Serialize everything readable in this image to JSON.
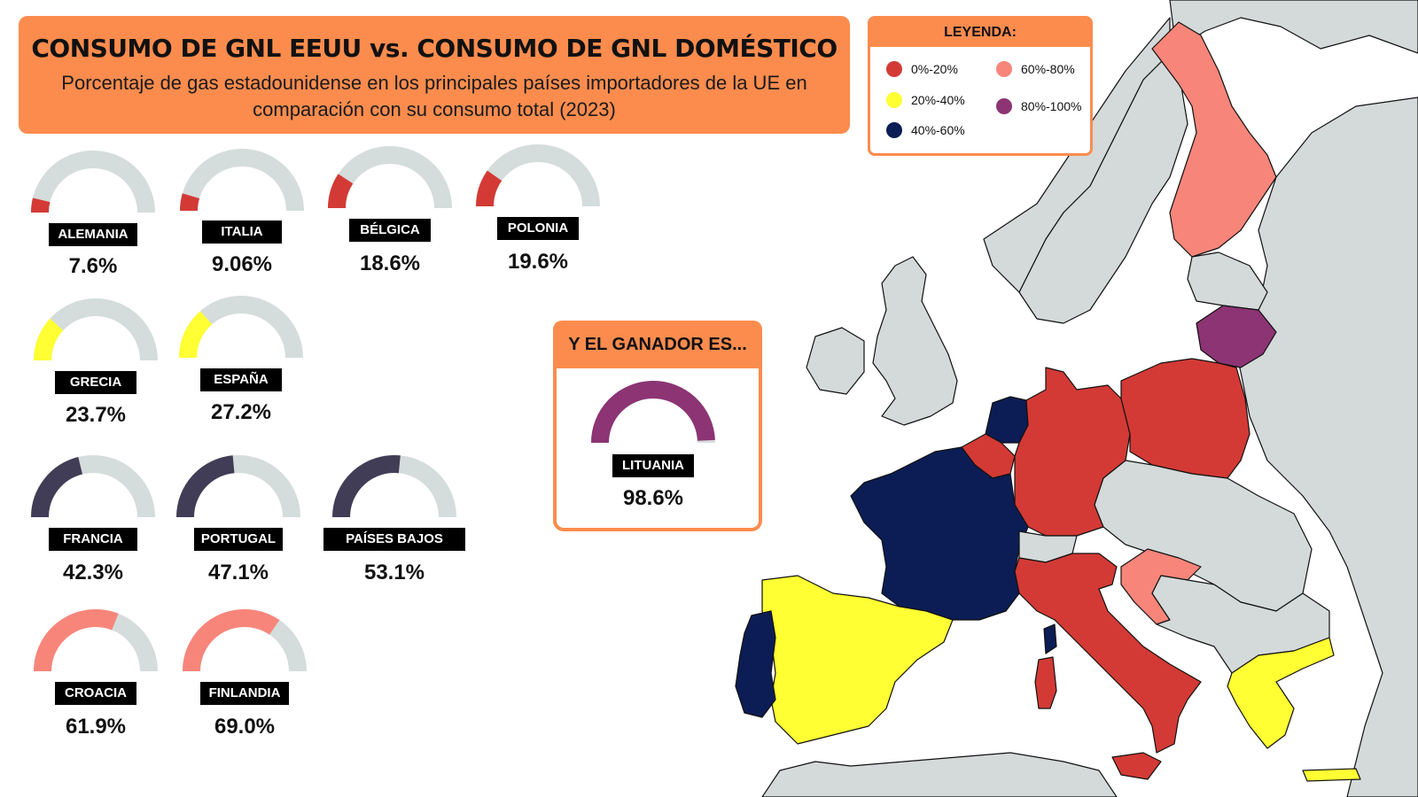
{
  "header": {
    "title": "CONSUMO DE GNL EEUU vs. CONSUMO DE GNL DOMÉSTICO",
    "subtitle": "Porcentaje de gas estadounidense en los principales países importadores de la UE en comparación con su consumo total (2023)"
  },
  "legend": {
    "title": "LEYENDA:",
    "items": [
      {
        "label": "0%-20%",
        "color": "#d33a35"
      },
      {
        "label": "20%-40%",
        "color": "#ffff33"
      },
      {
        "label": "40%-60%",
        "color": "#0c1d55"
      },
      {
        "label": "60%-80%",
        "color": "#f8857a"
      },
      {
        "label": "80%-100%",
        "color": "#8c3474"
      }
    ]
  },
  "winner": {
    "title": "Y EL GANADOR ES..."
  },
  "colors": {
    "accent": "#fb8c4e",
    "gauge_track": "#d5dcdc",
    "range_0_20": "#d33a35",
    "range_20_40": "#ffff33",
    "range_40_60_gauge": "#423d56",
    "range_40_60_map": "#0c1d55",
    "range_60_80": "#f8857a",
    "range_80_100": "#8c3474",
    "map_other": "#d4d9da"
  },
  "chart_data": {
    "type": "gauge",
    "title": "CONSUMO DE GNL EEUU vs. CONSUMO DE GNL DOMÉSTICO",
    "unit": "%",
    "range": [
      0,
      100
    ],
    "series": [
      {
        "name": "ALEMANIA",
        "value": 7.6,
        "display": "7.6%",
        "color": "#d33a35"
      },
      {
        "name": "ITALIA",
        "value": 9.06,
        "display": "9.06%",
        "color": "#d33a35"
      },
      {
        "name": "BÉLGICA",
        "value": 18.6,
        "display": "18.6%",
        "color": "#d33a35"
      },
      {
        "name": "POLONIA",
        "value": 19.6,
        "display": "19.6%",
        "color": "#d33a35"
      },
      {
        "name": "GRECIA",
        "value": 23.7,
        "display": "23.7%",
        "color": "#ffff33"
      },
      {
        "name": "ESPAÑA",
        "value": 27.2,
        "display": "27.2%",
        "color": "#ffff33"
      },
      {
        "name": "FRANCIA",
        "value": 42.3,
        "display": "42.3%",
        "color": "#423d56"
      },
      {
        "name": "PORTUGAL",
        "value": 47.1,
        "display": "47.1%",
        "color": "#423d56"
      },
      {
        "name": "PAÍSES BAJOS",
        "value": 53.1,
        "display": "53.1%",
        "color": "#423d56"
      },
      {
        "name": "CROACIA",
        "value": 61.9,
        "display": "61.9%",
        "color": "#f8857a"
      },
      {
        "name": "FINLANDIA",
        "value": 69.0,
        "display": "69.0%",
        "color": "#f8857a"
      },
      {
        "name": "LITUANIA",
        "value": 98.6,
        "display": "98.6%",
        "color": "#8c3474"
      }
    ]
  }
}
